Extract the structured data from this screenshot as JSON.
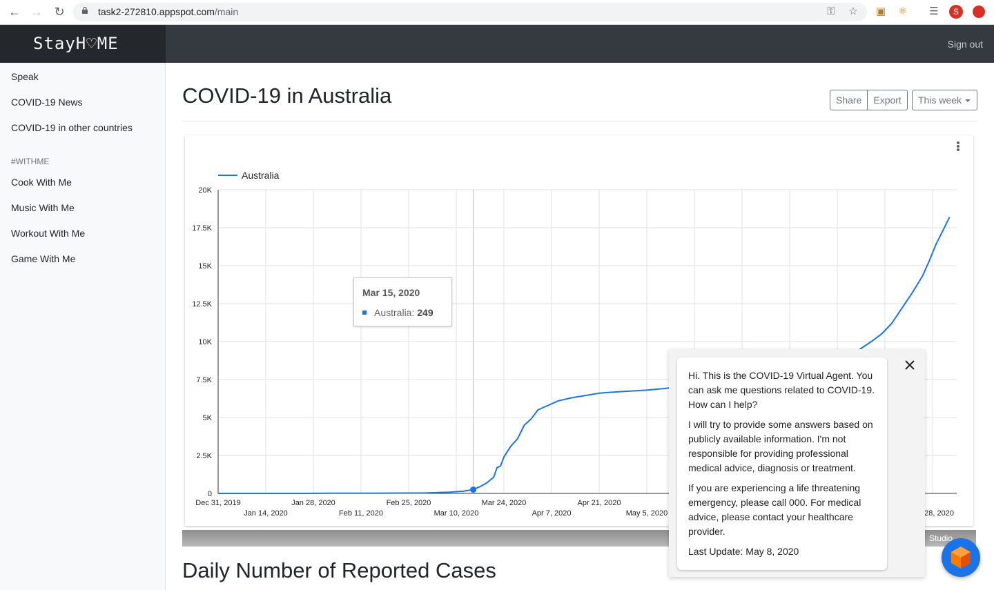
{
  "browser": {
    "url_host": "task2-272810.appspot.com",
    "url_path": "/main",
    "profile_initial": "S"
  },
  "header": {
    "brand": "StayH♡ME",
    "sign_out": "Sign out"
  },
  "sidebar": {
    "items": [
      {
        "label": "Speak"
      },
      {
        "label": "COVID-19 News"
      },
      {
        "label": "COVID-19 in other countries"
      }
    ],
    "heading": "#WITHME",
    "withme_items": [
      {
        "label": "Cook With Me"
      },
      {
        "label": "Music With Me"
      },
      {
        "label": "Workout With Me"
      },
      {
        "label": "Game With Me"
      }
    ]
  },
  "main": {
    "title": "COVID-19 in Australia",
    "share": "Share",
    "export": "Export",
    "period": "This week",
    "section_title": "Daily Number of Reported Cases",
    "studio_label": "Studio"
  },
  "tooltip": {
    "date": "Mar 15, 2020",
    "series": "Australia: ",
    "value": "249"
  },
  "agent": {
    "greeting": "Hi. This is the COVID-19 Virtual Agent. You can ask me questions related to COVID-19. How can I help?",
    "disclaimer": "I will try to provide some answers based on publicly available information. I'm not responsible for providing professional medical advice, diagnosis or treatment.",
    "emergency": "If you are experiencing a life threatening emergency, please call 000. For medical advice, please contact your healthcare provider.",
    "last_update": "Last Update: May 8, 2020"
  },
  "colors": {
    "line": "#1a73e8",
    "header": "#343a40",
    "brand_bg": "#24282c"
  },
  "chart_data": {
    "type": "line",
    "series": [
      {
        "name": "Australia"
      }
    ],
    "legend": "top-left",
    "grid": true,
    "ylim": [
      0,
      20000
    ],
    "y_ticks": [
      "0",
      "2.5K",
      "5K",
      "7.5K",
      "10K",
      "12.5K",
      "15K",
      "17.5K",
      "20K"
    ],
    "x_ticks_row1": [
      "Dec 31, 2019",
      "Jan 28, 2020",
      "Feb 25, 2020",
      "Mar 24, 2020",
      "Apr 21, 2020"
    ],
    "x_ticks_row2": [
      "Jan 14, 2020",
      "Feb 11, 2020",
      "Mar 10, 2020",
      "Apr 7, 2020",
      "May 5, 2020"
    ],
    "x_tick_partial": "28, 2020",
    "x_start": "2019-12-31",
    "points": [
      [
        "2019-12-31",
        0
      ],
      [
        "2020-01-25",
        1
      ],
      [
        "2020-02-01",
        12
      ],
      [
        "2020-02-15",
        15
      ],
      [
        "2020-03-01",
        27
      ],
      [
        "2020-03-08",
        80
      ],
      [
        "2020-03-12",
        140
      ],
      [
        "2020-03-15",
        249
      ],
      [
        "2020-03-17",
        450
      ],
      [
        "2020-03-19",
        700
      ],
      [
        "2020-03-21",
        1070
      ],
      [
        "2020-03-22",
        1700
      ],
      [
        "2020-03-23",
        1800
      ],
      [
        "2020-03-24",
        2400
      ],
      [
        "2020-03-26",
        3100
      ],
      [
        "2020-03-28",
        3600
      ],
      [
        "2020-03-30",
        4500
      ],
      [
        "2020-04-01",
        4900
      ],
      [
        "2020-04-03",
        5500
      ],
      [
        "2020-04-05",
        5700
      ],
      [
        "2020-04-09",
        6100
      ],
      [
        "2020-04-13",
        6300
      ],
      [
        "2020-04-17",
        6450
      ],
      [
        "2020-04-21",
        6600
      ],
      [
        "2020-04-27",
        6700
      ],
      [
        "2020-05-05",
        6800
      ],
      [
        "2020-05-12",
        6950
      ],
      [
        "2020-06-01",
        7250
      ],
      [
        "2020-06-10",
        7450
      ],
      [
        "2020-06-18",
        7700
      ],
      [
        "2020-06-24",
        8000
      ],
      [
        "2020-06-28",
        8300
      ],
      [
        "2020-07-02",
        8700
      ],
      [
        "2020-07-06",
        9400
      ],
      [
        "2020-07-10",
        10000
      ],
      [
        "2020-07-13",
        10500
      ],
      [
        "2020-07-16",
        11200
      ],
      [
        "2020-07-19",
        12200
      ],
      [
        "2020-07-22",
        13200
      ],
      [
        "2020-07-25",
        14300
      ],
      [
        "2020-07-27",
        15300
      ],
      [
        "2020-07-29",
        16400
      ],
      [
        "2020-07-31",
        17300
      ],
      [
        "2020-08-02",
        18200
      ]
    ],
    "highlight": [
      "2020-03-15",
      249
    ]
  }
}
